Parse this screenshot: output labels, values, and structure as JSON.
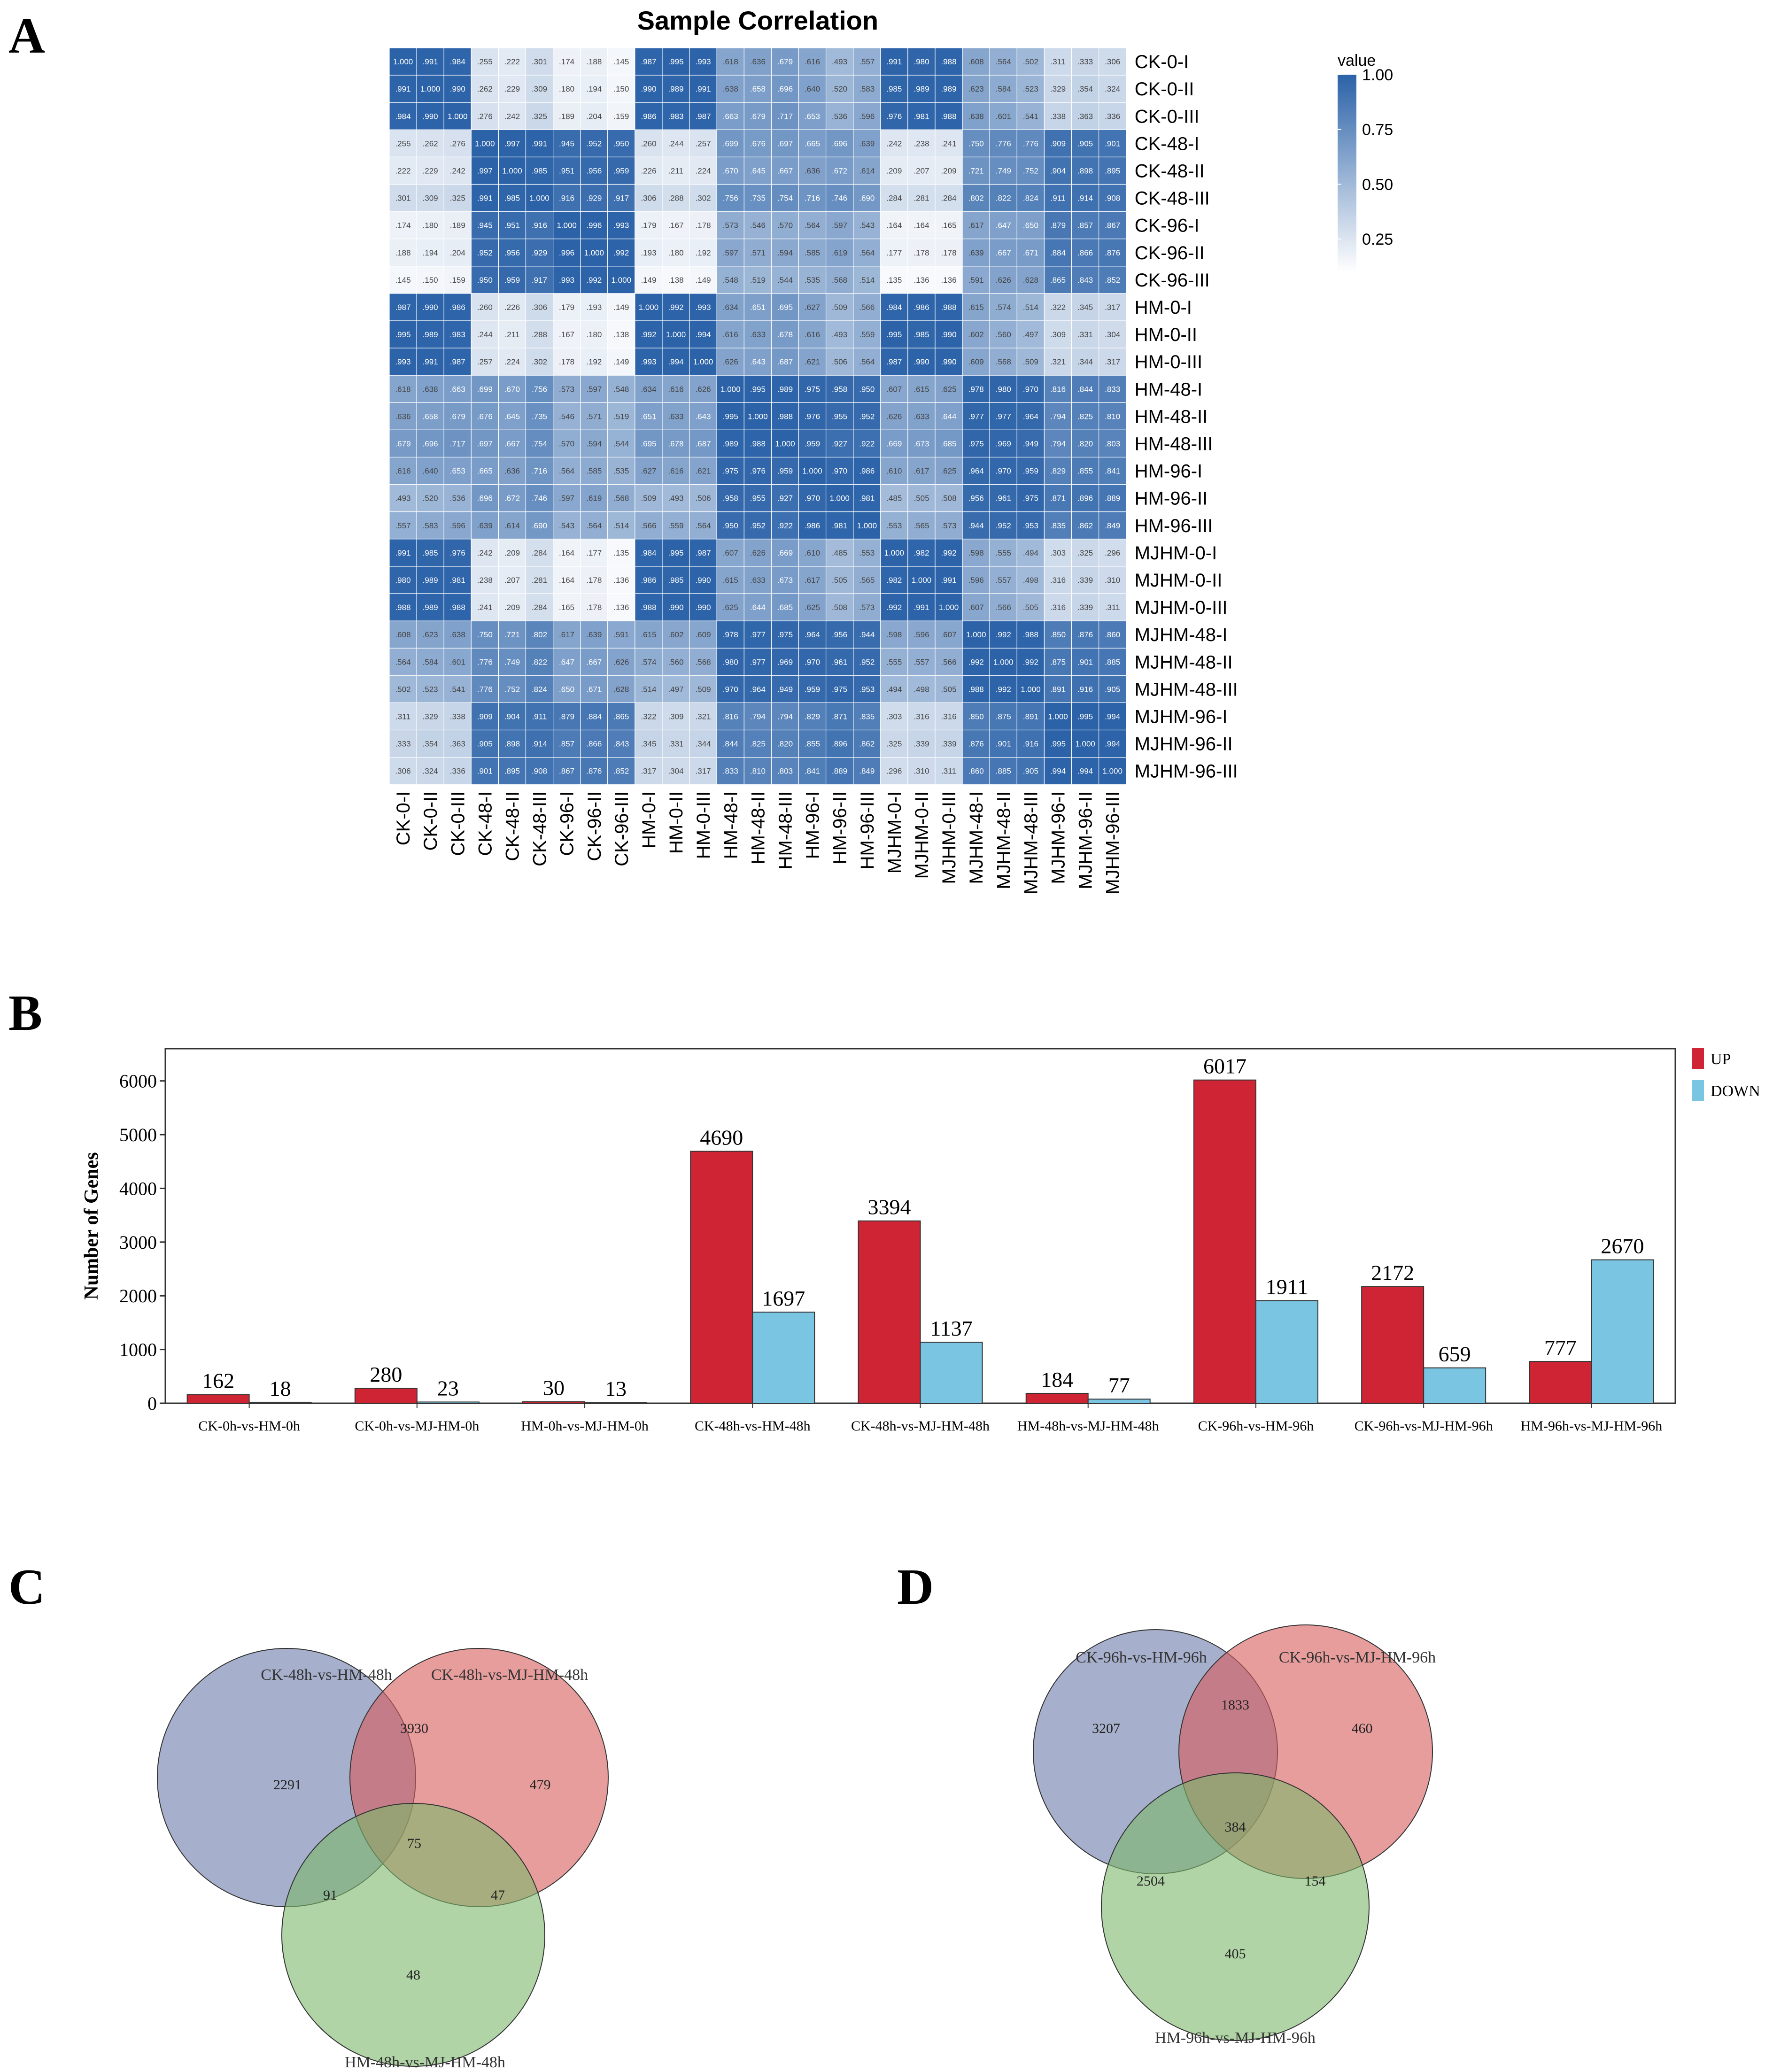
{
  "panels": {
    "a": "A",
    "b": "B",
    "c": "C",
    "d": "D"
  },
  "chart_data": [
    {
      "type": "heatmap",
      "title": "Sample Correlation",
      "legend_title": "value",
      "colorbar_ticks": [
        "1.00",
        "0.75",
        "0.50",
        "0.25"
      ],
      "colorbar_values": [
        1.0,
        0.75,
        0.5,
        0.25
      ],
      "color_low": "#ffffff",
      "color_high": "#2b62a8",
      "labels": [
        "CK-0-I",
        "CK-0-II",
        "CK-0-III",
        "CK-48-I",
        "CK-48-II",
        "CK-48-III",
        "CK-96-I",
        "CK-96-II",
        "CK-96-III",
        "HM-0-I",
        "HM-0-II",
        "HM-0-III",
        "HM-48-I",
        "HM-48-II",
        "HM-48-III",
        "HM-96-I",
        "HM-96-II",
        "HM-96-III",
        "MJHM-0-I",
        "MJHM-0-II",
        "MJHM-0-III",
        "MJHM-48-I",
        "MJHM-48-II",
        "MJHM-48-III",
        "MJHM-96-I",
        "MJHM-96-II",
        "MJHM-96-III"
      ],
      "values": [
        [
          1.0,
          0.991,
          0.984,
          0.255,
          0.222,
          0.301,
          0.174,
          0.188,
          0.145,
          0.987,
          0.995,
          0.993,
          0.618,
          0.636,
          0.679,
          0.616,
          0.493,
          0.557,
          0.991,
          0.98,
          0.988,
          0.608,
          0.564,
          0.502,
          0.311,
          0.333,
          0.306
        ],
        [
          0.991,
          1.0,
          0.99,
          0.262,
          0.229,
          0.309,
          0.18,
          0.194,
          0.15,
          0.99,
          0.989,
          0.991,
          0.638,
          0.658,
          0.696,
          0.64,
          0.52,
          0.583,
          0.985,
          0.989,
          0.989,
          0.623,
          0.584,
          0.523,
          0.329,
          0.354,
          0.324
        ],
        [
          0.984,
          0.99,
          1.0,
          0.276,
          0.242,
          0.325,
          0.189,
          0.204,
          0.159,
          0.986,
          0.983,
          0.987,
          0.663,
          0.679,
          0.717,
          0.653,
          0.536,
          0.596,
          0.976,
          0.981,
          0.988,
          0.638,
          0.601,
          0.541,
          0.338,
          0.363,
          0.336
        ],
        [
          0.255,
          0.262,
          0.276,
          1.0,
          0.997,
          0.991,
          0.945,
          0.952,
          0.95,
          0.26,
          0.244,
          0.257,
          0.699,
          0.676,
          0.697,
          0.665,
          0.696,
          0.639,
          0.242,
          0.238,
          0.241,
          0.75,
          0.776,
          0.776,
          0.909,
          0.905,
          0.901
        ],
        [
          0.222,
          0.229,
          0.242,
          0.997,
          1.0,
          0.985,
          0.951,
          0.956,
          0.959,
          0.226,
          0.211,
          0.224,
          0.67,
          0.645,
          0.667,
          0.636,
          0.672,
          0.614,
          0.209,
          0.207,
          0.209,
          0.721,
          0.749,
          0.752,
          0.904,
          0.898,
          0.895
        ],
        [
          0.301,
          0.309,
          0.325,
          0.991,
          0.985,
          1.0,
          0.916,
          0.929,
          0.917,
          0.306,
          0.288,
          0.302,
          0.756,
          0.735,
          0.754,
          0.716,
          0.746,
          0.69,
          0.284,
          0.281,
          0.284,
          0.802,
          0.822,
          0.824,
          0.911,
          0.914,
          0.908
        ],
        [
          0.174,
          0.18,
          0.189,
          0.945,
          0.951,
          0.916,
          1.0,
          0.996,
          0.993,
          0.179,
          0.167,
          0.178,
          0.573,
          0.546,
          0.57,
          0.564,
          0.597,
          0.543,
          0.164,
          0.164,
          0.165,
          0.617,
          0.647,
          0.65,
          0.879,
          0.857,
          0.867
        ],
        [
          0.188,
          0.194,
          0.204,
          0.952,
          0.956,
          0.929,
          0.996,
          1.0,
          0.992,
          0.193,
          0.18,
          0.192,
          0.597,
          0.571,
          0.594,
          0.585,
          0.619,
          0.564,
          0.177,
          0.178,
          0.178,
          0.639,
          0.667,
          0.671,
          0.884,
          0.866,
          0.876
        ],
        [
          0.145,
          0.15,
          0.159,
          0.95,
          0.959,
          0.917,
          0.993,
          0.992,
          1.0,
          0.149,
          0.138,
          0.149,
          0.548,
          0.519,
          0.544,
          0.535,
          0.568,
          0.514,
          0.135,
          0.136,
          0.136,
          0.591,
          0.626,
          0.628,
          0.865,
          0.843,
          0.852
        ],
        [
          0.987,
          0.99,
          0.986,
          0.26,
          0.226,
          0.306,
          0.179,
          0.193,
          0.149,
          1.0,
          0.992,
          0.993,
          0.634,
          0.651,
          0.695,
          0.627,
          0.509,
          0.566,
          0.984,
          0.986,
          0.988,
          0.615,
          0.574,
          0.514,
          0.322,
          0.345,
          0.317
        ],
        [
          0.995,
          0.989,
          0.983,
          0.244,
          0.211,
          0.288,
          0.167,
          0.18,
          0.138,
          0.992,
          1.0,
          0.994,
          0.616,
          0.633,
          0.678,
          0.616,
          0.493,
          0.559,
          0.995,
          0.985,
          0.99,
          0.602,
          0.56,
          0.497,
          0.309,
          0.331,
          0.304
        ],
        [
          0.993,
          0.991,
          0.987,
          0.257,
          0.224,
          0.302,
          0.178,
          0.192,
          0.149,
          0.993,
          0.994,
          1.0,
          0.626,
          0.643,
          0.687,
          0.621,
          0.506,
          0.564,
          0.987,
          0.99,
          0.99,
          0.609,
          0.568,
          0.509,
          0.321,
          0.344,
          0.317
        ],
        [
          0.618,
          0.638,
          0.663,
          0.699,
          0.67,
          0.756,
          0.573,
          0.597,
          0.548,
          0.634,
          0.616,
          0.626,
          1.0,
          0.995,
          0.989,
          0.975,
          0.958,
          0.95,
          0.607,
          0.615,
          0.625,
          0.978,
          0.98,
          0.97,
          0.816,
          0.844,
          0.833
        ],
        [
          0.636,
          0.658,
          0.679,
          0.676,
          0.645,
          0.735,
          0.546,
          0.571,
          0.519,
          0.651,
          0.633,
          0.643,
          0.995,
          1.0,
          0.988,
          0.976,
          0.955,
          0.952,
          0.626,
          0.633,
          0.644,
          0.977,
          0.977,
          0.964,
          0.794,
          0.825,
          0.81
        ],
        [
          0.679,
          0.696,
          0.717,
          0.697,
          0.667,
          0.754,
          0.57,
          0.594,
          0.544,
          0.695,
          0.678,
          0.687,
          0.989,
          0.988,
          1.0,
          0.959,
          0.927,
          0.922,
          0.669,
          0.673,
          0.685,
          0.975,
          0.969,
          0.949,
          0.794,
          0.82,
          0.803
        ],
        [
          0.616,
          0.64,
          0.653,
          0.665,
          0.636,
          0.716,
          0.564,
          0.585,
          0.535,
          0.627,
          0.616,
          0.621,
          0.975,
          0.976,
          0.959,
          1.0,
          0.97,
          0.986,
          0.61,
          0.617,
          0.625,
          0.964,
          0.97,
          0.959,
          0.829,
          0.855,
          0.841
        ],
        [
          0.493,
          0.52,
          0.536,
          0.696,
          0.672,
          0.746,
          0.597,
          0.619,
          0.568,
          0.509,
          0.493,
          0.506,
          0.958,
          0.955,
          0.927,
          0.97,
          1.0,
          0.981,
          0.485,
          0.505,
          0.508,
          0.956,
          0.961,
          0.975,
          0.871,
          0.896,
          0.889
        ],
        [
          0.557,
          0.583,
          0.596,
          0.639,
          0.614,
          0.69,
          0.543,
          0.564,
          0.514,
          0.566,
          0.559,
          0.564,
          0.95,
          0.952,
          0.922,
          0.986,
          0.981,
          1.0,
          0.553,
          0.565,
          0.573,
          0.944,
          0.952,
          0.953,
          0.835,
          0.862,
          0.849
        ],
        [
          0.991,
          0.985,
          0.976,
          0.242,
          0.209,
          0.284,
          0.164,
          0.177,
          0.135,
          0.984,
          0.995,
          0.987,
          0.607,
          0.626,
          0.669,
          0.61,
          0.485,
          0.553,
          1.0,
          0.982,
          0.992,
          0.598,
          0.555,
          0.494,
          0.303,
          0.325,
          0.296
        ],
        [
          0.98,
          0.989,
          0.981,
          0.238,
          0.207,
          0.281,
          0.164,
          0.178,
          0.136,
          0.986,
          0.985,
          0.99,
          0.615,
          0.633,
          0.673,
          0.617,
          0.505,
          0.565,
          0.982,
          1.0,
          0.991,
          0.596,
          0.557,
          0.498,
          0.316,
          0.339,
          0.31
        ],
        [
          0.988,
          0.989,
          0.988,
          0.241,
          0.209,
          0.284,
          0.165,
          0.178,
          0.136,
          0.988,
          0.99,
          0.99,
          0.625,
          0.644,
          0.685,
          0.625,
          0.508,
          0.573,
          0.992,
          0.991,
          1.0,
          0.607,
          0.566,
          0.505,
          0.316,
          0.339,
          0.311
        ],
        [
          0.608,
          0.623,
          0.638,
          0.75,
          0.721,
          0.802,
          0.617,
          0.639,
          0.591,
          0.615,
          0.602,
          0.609,
          0.978,
          0.977,
          0.975,
          0.964,
          0.956,
          0.944,
          0.598,
          0.596,
          0.607,
          1.0,
          0.992,
          0.988,
          0.85,
          0.876,
          0.86
        ],
        [
          0.564,
          0.584,
          0.601,
          0.776,
          0.749,
          0.822,
          0.647,
          0.667,
          0.626,
          0.574,
          0.56,
          0.568,
          0.98,
          0.977,
          0.969,
          0.97,
          0.961,
          0.952,
          0.555,
          0.557,
          0.566,
          0.992,
          1.0,
          0.992,
          0.875,
          0.901,
          0.885
        ],
        [
          0.502,
          0.523,
          0.541,
          0.776,
          0.752,
          0.824,
          0.65,
          0.671,
          0.628,
          0.514,
          0.497,
          0.509,
          0.97,
          0.964,
          0.949,
          0.959,
          0.975,
          0.953,
          0.494,
          0.498,
          0.505,
          0.988,
          0.992,
          1.0,
          0.891,
          0.916,
          0.905
        ],
        [
          0.311,
          0.329,
          0.338,
          0.909,
          0.904,
          0.911,
          0.879,
          0.884,
          0.865,
          0.322,
          0.309,
          0.321,
          0.816,
          0.794,
          0.794,
          0.829,
          0.871,
          0.835,
          0.303,
          0.316,
          0.316,
          0.85,
          0.875,
          0.891,
          1.0,
          0.995,
          0.994
        ],
        [
          0.333,
          0.354,
          0.363,
          0.905,
          0.898,
          0.914,
          0.857,
          0.866,
          0.843,
          0.345,
          0.331,
          0.344,
          0.844,
          0.825,
          0.82,
          0.855,
          0.896,
          0.862,
          0.325,
          0.339,
          0.339,
          0.876,
          0.901,
          0.916,
          0.995,
          1.0,
          0.994
        ],
        [
          0.306,
          0.324,
          0.336,
          0.901,
          0.895,
          0.908,
          0.867,
          0.876,
          0.852,
          0.317,
          0.304,
          0.317,
          0.833,
          0.81,
          0.803,
          0.841,
          0.889,
          0.849,
          0.296,
          0.31,
          0.311,
          0.86,
          0.885,
          0.905,
          0.994,
          0.994,
          1.0
        ]
      ]
    },
    {
      "type": "bar",
      "title": "",
      "ylabel": "Number of Genes",
      "xlabel": "",
      "ylim": [
        0,
        6600
      ],
      "yticks": [
        0,
        1000,
        2000,
        3000,
        4000,
        5000,
        6000
      ],
      "categories": [
        "CK-0h-vs-HM-0h",
        "CK-0h-vs-MJ-HM-0h",
        "HM-0h-vs-MJ-HM-0h",
        "CK-48h-vs-HM-48h",
        "CK-48h-vs-MJ-HM-48h",
        "HM-48h-vs-MJ-HM-48h",
        "CK-96h-vs-HM-96h",
        "CK-96h-vs-MJ-HM-96h",
        "HM-96h-vs-MJ-HM-96h"
      ],
      "series": [
        {
          "name": "UP",
          "color": "#cf2433",
          "values": [
            162,
            280,
            30,
            4690,
            3394,
            184,
            6017,
            2172,
            777
          ]
        },
        {
          "name": "DOWN",
          "color": "#79c5e2",
          "values": [
            18,
            23,
            13,
            1697,
            1137,
            77,
            1911,
            659,
            2670
          ]
        }
      ],
      "legend_position": "top-right"
    },
    {
      "type": "venn",
      "sets": [
        {
          "name": "CK-48h-vs-HM-48h",
          "color": "#6a7aa8"
        },
        {
          "name": "CK-48h-vs-MJ-HM-48h",
          "color": "#d85c5c"
        },
        {
          "name": "HM-48h-vs-MJ-HM-48h",
          "color": "#7cb86a"
        }
      ],
      "regions": {
        "only_1": 2291,
        "only_2": 479,
        "only_3": 48,
        "1_2": 3930,
        "1_3": 91,
        "2_3": 47,
        "1_2_3": 75
      }
    },
    {
      "type": "venn",
      "sets": [
        {
          "name": "CK-96h-vs-HM-96h",
          "color": "#6a7aa8"
        },
        {
          "name": "CK-96h-vs-MJ-HM-96h",
          "color": "#d85c5c"
        },
        {
          "name": "HM-96h-vs-MJ-HM-96h",
          "color": "#7cb86a"
        }
      ],
      "regions": {
        "only_1": 3207,
        "only_2": 460,
        "only_3": 405,
        "1_2": 1833,
        "1_3": 2504,
        "2_3": 154,
        "1_2_3": 384
      }
    }
  ]
}
